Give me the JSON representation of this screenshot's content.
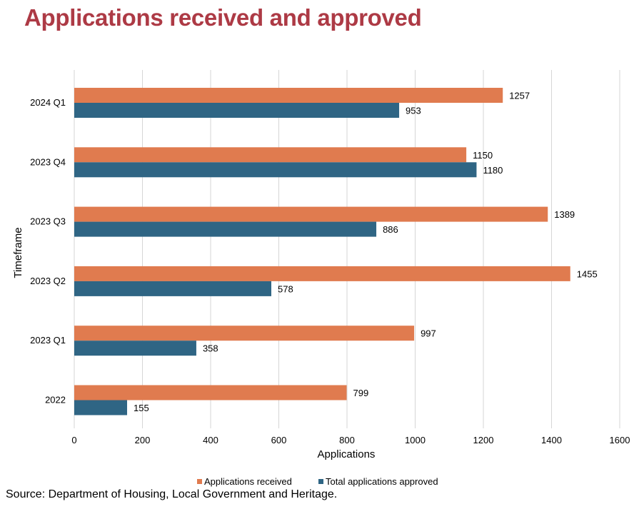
{
  "title": "Applications received and approved",
  "source": "Source: Department of Housing, Local Government and Heritage.",
  "colors": {
    "title": "#ad3a45",
    "received": "#e07b4f",
    "approved": "#2f6584",
    "grid": "#d6d6d6"
  },
  "chart_data": {
    "type": "bar",
    "orientation": "horizontal",
    "title": "Applications received and approved",
    "xlabel": "Applications",
    "ylabel": "Timeframe",
    "xlim": [
      0,
      1600
    ],
    "xticks": [
      0,
      200,
      400,
      600,
      800,
      1000,
      1200,
      1400,
      1600
    ],
    "grid": "vertical",
    "legend": "bottom",
    "categories": [
      "2024 Q1",
      "2023 Q4",
      "2023 Q3",
      "2023 Q2",
      "2023 Q1",
      "2022"
    ],
    "series": [
      {
        "name": "Applications received",
        "values": [
          1257,
          1150,
          1389,
          1455,
          997,
          799
        ]
      },
      {
        "name": "Total applications approved",
        "values": [
          953,
          1180,
          886,
          578,
          358,
          155
        ]
      }
    ]
  }
}
